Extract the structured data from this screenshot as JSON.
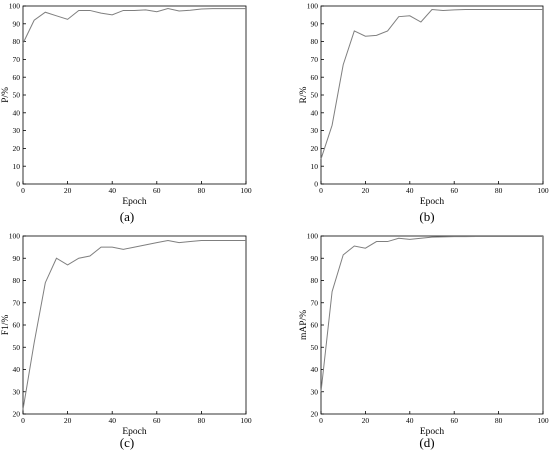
{
  "chart_data": [
    {
      "type": "line",
      "caption": "(a)",
      "xlabel": "Epoch",
      "ylabel": "P/%",
      "xlim": [
        0,
        100
      ],
      "ylim": [
        0,
        100
      ],
      "xticks": [
        0,
        20,
        40,
        60,
        80,
        100
      ],
      "yticks": [
        0,
        10,
        20,
        30,
        40,
        50,
        60,
        70,
        80,
        90,
        100
      ],
      "grid": false,
      "series": [
        {
          "x": [
            0,
            5,
            10,
            15,
            20,
            25,
            30,
            35,
            40,
            45,
            50,
            55,
            60,
            65,
            70,
            75,
            80,
            85,
            90,
            95,
            100
          ],
          "y": [
            79,
            92,
            96.5,
            94.5,
            92.5,
            97.5,
            97.5,
            96,
            95,
            97.5,
            97.5,
            97.8,
            96.8,
            98.6,
            97.2,
            97.6,
            98.3,
            98.5,
            98.5,
            98.5,
            98.5
          ]
        }
      ]
    },
    {
      "type": "line",
      "caption": "(b)",
      "xlabel": "Epoch",
      "ylabel": "R/%",
      "xlim": [
        0,
        100
      ],
      "ylim": [
        0,
        100
      ],
      "xticks": [
        0,
        20,
        40,
        60,
        80,
        100
      ],
      "yticks": [
        0,
        10,
        20,
        30,
        40,
        50,
        60,
        70,
        80,
        90,
        100
      ],
      "grid": false,
      "series": [
        {
          "x": [
            0,
            5,
            10,
            15,
            20,
            25,
            30,
            35,
            40,
            45,
            50,
            55,
            60,
            65,
            70,
            75,
            80,
            85,
            90,
            95,
            100
          ],
          "y": [
            14,
            33,
            67,
            86,
            83,
            83.5,
            86,
            94,
            94.5,
            91,
            98,
            97.5,
            97.8,
            98,
            98,
            98,
            98,
            98,
            98,
            98,
            98
          ]
        }
      ]
    },
    {
      "type": "line",
      "caption": "(c)",
      "xlabel": "Epoch",
      "ylabel": "F1/%",
      "xlim": [
        0,
        100
      ],
      "ylim": [
        20,
        100
      ],
      "xticks": [
        0,
        20,
        40,
        60,
        80,
        100
      ],
      "yticks": [
        20,
        30,
        40,
        50,
        60,
        70,
        80,
        90,
        100
      ],
      "grid": false,
      "series": [
        {
          "x": [
            0,
            5,
            10,
            15,
            20,
            25,
            30,
            35,
            40,
            45,
            50,
            55,
            60,
            65,
            70,
            75,
            80,
            85,
            90,
            95,
            100
          ],
          "y": [
            22,
            52,
            79,
            90,
            87,
            90,
            91,
            95,
            95,
            94,
            95,
            96,
            97,
            98,
            97,
            97.5,
            98,
            98,
            98,
            98,
            98
          ]
        }
      ]
    },
    {
      "type": "line",
      "caption": "(d)",
      "xlabel": "Epoch",
      "ylabel": "mAP/%",
      "xlim": [
        0,
        100
      ],
      "ylim": [
        20,
        100
      ],
      "xticks": [
        0,
        20,
        40,
        60,
        80,
        100
      ],
      "yticks": [
        20,
        30,
        40,
        50,
        60,
        70,
        80,
        90,
        100
      ],
      "grid": false,
      "series": [
        {
          "x": [
            0,
            5,
            10,
            15,
            20,
            25,
            30,
            35,
            40,
            45,
            50,
            55,
            60,
            65,
            70,
            75,
            80,
            85,
            90,
            95,
            100
          ],
          "y": [
            30,
            75,
            91.5,
            95.5,
            94.5,
            97.5,
            97.5,
            99,
            98.5,
            99,
            99.5,
            99.6,
            99.7,
            99.7,
            99.8,
            99.8,
            99.8,
            99.8,
            99.8,
            99.8,
            99.8
          ]
        }
      ]
    }
  ]
}
